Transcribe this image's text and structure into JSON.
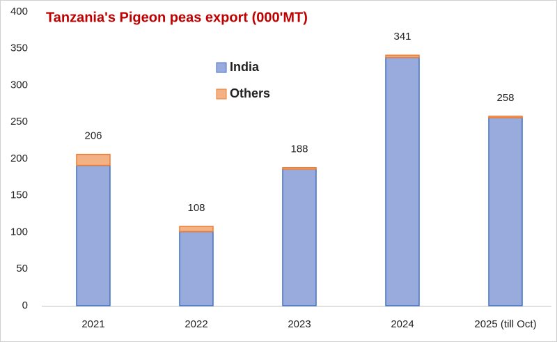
{
  "chart_data": {
    "type": "stacked_bar",
    "title": "Tanzania's Pigeon peas export (000'MT)",
    "categories": [
      "2021",
      "2022",
      "2023",
      "2024",
      "2025 (till Oct)"
    ],
    "series": [
      {
        "name": "India",
        "color": "#98abdc",
        "edgecolor": "#4472c4",
        "values": [
          191,
          101,
          186,
          338,
          256
        ]
      },
      {
        "name": "Others",
        "color": "#f4b183",
        "edgecolor": "#ed7d31",
        "values": [
          15,
          7,
          2,
          3,
          2
        ]
      }
    ],
    "totals": [
      206,
      108,
      188,
      341,
      258
    ],
    "ylim": [
      0,
      400
    ],
    "yticks": [
      0,
      50,
      100,
      150,
      200,
      250,
      300,
      350,
      400
    ],
    "grid": false
  }
}
